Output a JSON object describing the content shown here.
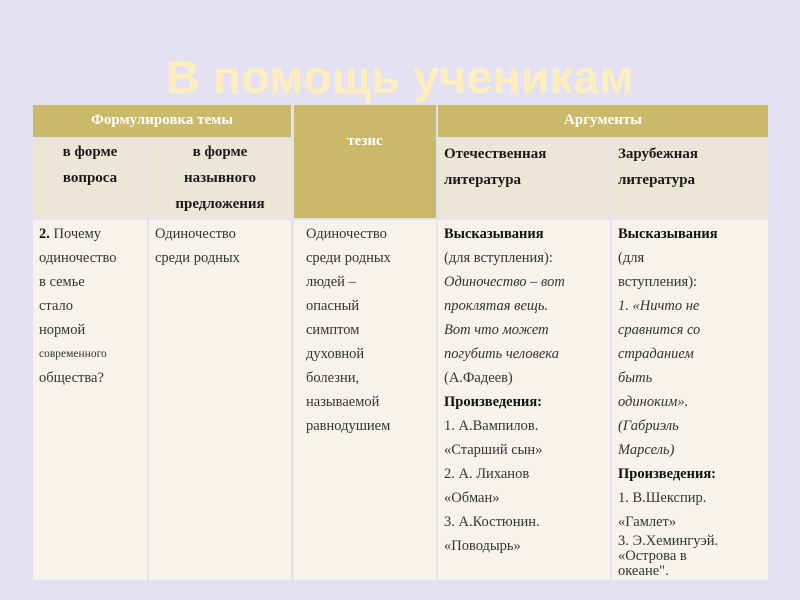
{
  "title": "В помощь ученикам",
  "colors": {
    "background": "#e4e1f3",
    "header_gold": "#cbb96a",
    "title": "#fdeebd",
    "body": "#f5f3ec"
  },
  "table": {
    "header": {
      "topic": "Формулировка темы",
      "thesis": "тезис",
      "arguments": "Аргументы",
      "question_form": [
        "в форме",
        "вопроса"
      ],
      "nominative_form": [
        "в форме",
        "назывного",
        "предложения"
      ],
      "domestic": [
        "Отечественная",
        "литература"
      ],
      "foreign": [
        "Зарубежная",
        "литература"
      ]
    },
    "row": {
      "question": [
        {
          "t": "2.",
          "s": "b"
        },
        {
          "t": " Почему",
          "s": ""
        },
        {
          "t": "одиночество",
          "s": ""
        },
        {
          "t": "в семье",
          "s": ""
        },
        {
          "t": "стало",
          "s": ""
        },
        {
          "t": "нормой",
          "s": ""
        },
        {
          "t": "современного",
          "s": "sm"
        },
        {
          "t": "общества?",
          "s": ""
        }
      ],
      "nominative": [
        "Одиночество",
        "среди родных"
      ],
      "thesis": [
        " Одиночество",
        "среди родных",
        "людей –",
        "опасный",
        "симптом",
        "духовной",
        "болезни,",
        "называемой",
        "равнодушием"
      ],
      "domestic": [
        {
          "t": " Высказывания",
          "s": "b"
        },
        {
          "t": "(для вступления):",
          "s": ""
        },
        {
          "t": "Одиночество – вот",
          "s": "i"
        },
        {
          "t": "проклятая вещь.",
          "s": "i"
        },
        {
          "t": "Вот что может",
          "s": "i"
        },
        {
          "t": "погубить человека",
          "s": "i"
        },
        {
          "t": "(А.Фадеев)",
          "s": ""
        },
        {
          "t": "Произведения:",
          "s": "b"
        },
        {
          "t": "1. А.Вампилов.",
          "s": ""
        },
        {
          "t": "«Старший сын»",
          "s": ""
        },
        {
          "t": "2. А. Лиханов",
          "s": ""
        },
        {
          "t": "«Обман»",
          "s": ""
        },
        {
          "t": "3. А.Костюнин.",
          "s": ""
        },
        {
          "t": "«Поводырь»",
          "s": ""
        }
      ],
      "foreign": [
        {
          "t": "Высказывания",
          "s": "b"
        },
        {
          "t": "(для",
          "s": ""
        },
        {
          "t": "вступления):",
          "s": ""
        },
        {
          "t": "1. «Ничто не",
          "s": "i"
        },
        {
          "t": "сравнится со",
          "s": "i"
        },
        {
          "t": "страданием",
          "s": "i"
        },
        {
          "t": "быть",
          "s": "i"
        },
        {
          "t": "одиноким».",
          "s": "i"
        },
        {
          "t": "(Габриэль",
          "s": "i"
        },
        {
          "t": "Марсель)",
          "s": "i"
        },
        {
          "t": "Произведения:",
          "s": "b"
        },
        {
          "t": "1. В.Шекспир.",
          "s": ""
        },
        {
          "t": "«Гамлет»",
          "s": ""
        },
        {
          "t": "3. Э.Хемингуэй.",
          "s": "tight"
        },
        {
          "t": "«Острова в",
          "s": "tight"
        },
        {
          "t": "океане\".",
          "s": "tight"
        }
      ]
    }
  }
}
